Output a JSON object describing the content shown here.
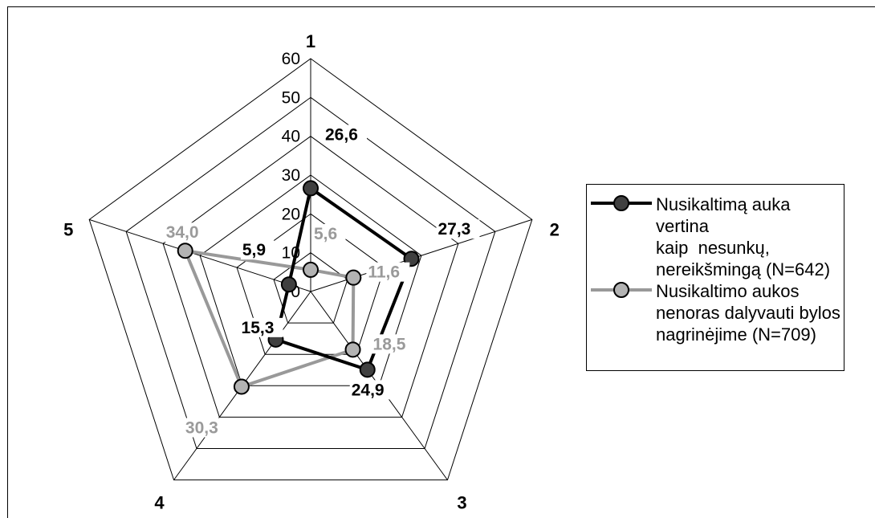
{
  "chart_data": {
    "type": "radar",
    "axes": [
      "1",
      "2",
      "3",
      "4",
      "5"
    ],
    "rlim": [
      0,
      60
    ],
    "ticks": [
      0,
      10,
      20,
      30,
      40,
      50,
      60
    ],
    "tick_labels": [
      "0",
      "10",
      "20",
      "30",
      "40",
      "50",
      "60"
    ],
    "grid": true,
    "legend_position": "right",
    "series": [
      {
        "name": "Nusikaltimą auka vertina kaip nesunkų, nereikšmingą (N=642)",
        "legend_lines": [
          "Nusikaltimą auka vertina",
          "kaip  nesunkų,",
          "nereikšmingą (N=642)"
        ],
        "values": [
          26.6,
          27.3,
          24.9,
          15.3,
          5.9
        ],
        "labels": [
          "26,6",
          "27,3",
          "24,9",
          "15,3",
          "5,9"
        ],
        "line_color": "#000000",
        "marker_color": "#404040",
        "label_color": "#000000"
      },
      {
        "name": "Nusikaltimo aukos nenoras dalyvauti bylos nagrinėjime (N=709)",
        "legend_lines": [
          "Nusikaltimo aukos",
          "nenoras dalyvauti bylos",
          "nagrinėjime (N=709)"
        ],
        "values": [
          5.6,
          11.6,
          18.5,
          30.3,
          34.0
        ],
        "labels": [
          "5,6",
          "11,6",
          "18,5",
          "30,3",
          "34,0"
        ],
        "line_color": "#999999",
        "marker_color": "#b3b3b3",
        "label_color": "#9a9a9a"
      }
    ]
  }
}
